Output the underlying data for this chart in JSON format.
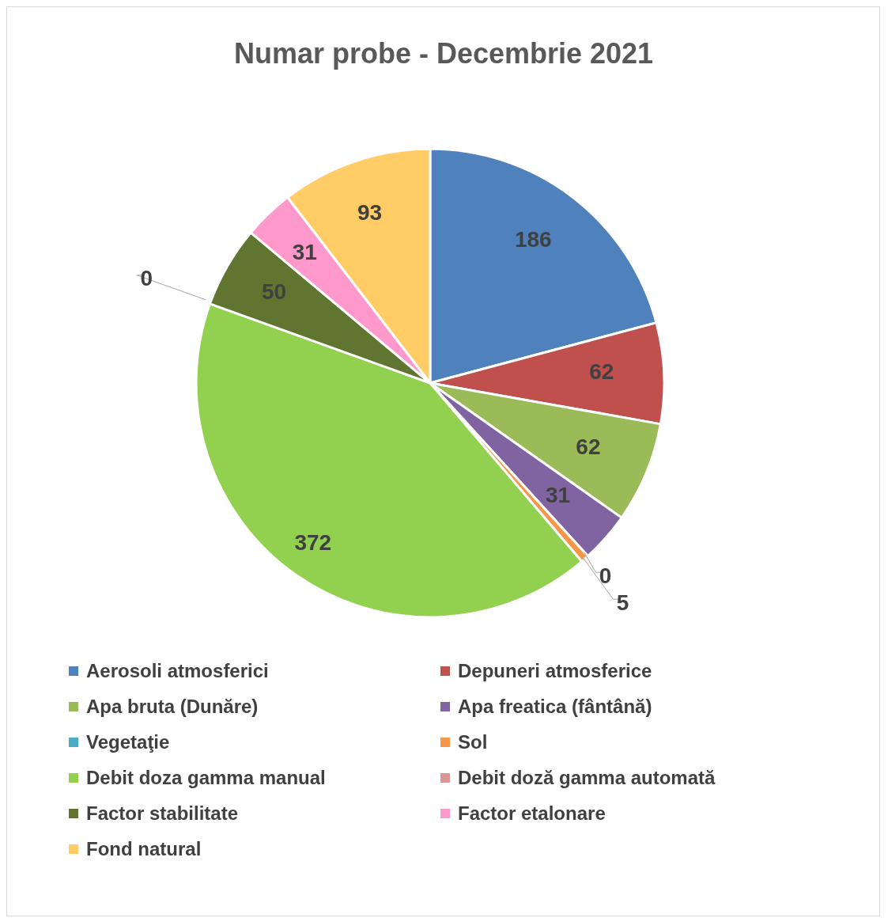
{
  "chart_data": {
    "type": "pie",
    "title": "Numar probe - Decembrie 2021",
    "categories": [
      "Aerosoli atmosferici",
      "Depuneri atmosferice",
      "Apa bruta (Dunăre)",
      "Apa freatica (fântână)",
      "Vegetaţie",
      "Sol",
      "Debit  doza gamma manual",
      "Debit doză gamma automată",
      "Factor stabilitate",
      "Factor etalonare",
      "Fond natural"
    ],
    "values": [
      186,
      62,
      62,
      31,
      0,
      5,
      372,
      0,
      50,
      31,
      93
    ],
    "colors": [
      "#4f81bd",
      "#c0504d",
      "#9bbb59",
      "#8064a2",
      "#4bacc6",
      "#f79646",
      "#92d050",
      "#d99694",
      "#5f7530",
      "#ff99cc",
      "#ffcc66"
    ],
    "value_labels": [
      "186",
      "62",
      "62",
      "31",
      "0",
      "5",
      "372",
      "0",
      "50",
      "31",
      "93"
    ],
    "legend": "bottom"
  }
}
